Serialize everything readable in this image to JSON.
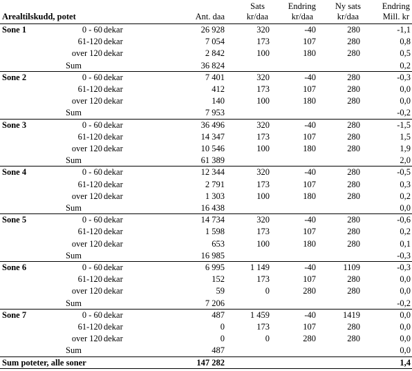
{
  "header": {
    "title": "Arealtilskudd, potet",
    "col_ant": "Ant. daa",
    "col_sats_1": "Sats",
    "col_sats_2": "kr/daa",
    "col_endring_1": "Endring",
    "col_endring_2": "kr/daa",
    "col_nysats_1": "Ny sats",
    "col_nysats_2": "kr/daa",
    "col_endmill_1": "Endring",
    "col_endmill_2": "Mill. kr"
  },
  "unit": "dekar",
  "sum_label": "Sum",
  "zones": [
    {
      "name": "Sone 1",
      "rows": [
        {
          "range": "0 -  60",
          "ant": "26 928",
          "sats": "320",
          "endring": "-40",
          "nysats": "280",
          "mill": "-1,1"
        },
        {
          "range": "61-120",
          "ant": "7 054",
          "sats": "173",
          "endring": "107",
          "nysats": "280",
          "mill": "0,8"
        },
        {
          "range": "over 120",
          "ant": "2 842",
          "sats": "100",
          "endring": "180",
          "nysats": "280",
          "mill": "0,5"
        }
      ],
      "sum_ant": "36 824",
      "sum_mill": "0,2"
    },
    {
      "name": "Sone 2",
      "rows": [
        {
          "range": "0 -  60",
          "ant": "7 401",
          "sats": "320",
          "endring": "-40",
          "nysats": "280",
          "mill": "-0,3"
        },
        {
          "range": "61-120",
          "ant": "412",
          "sats": "173",
          "endring": "107",
          "nysats": "280",
          "mill": "0,0"
        },
        {
          "range": "over 120",
          "ant": "140",
          "sats": "100",
          "endring": "180",
          "nysats": "280",
          "mill": "0,0"
        }
      ],
      "sum_ant": "7 953",
      "sum_mill": "-0,2"
    },
    {
      "name": "Sone 3",
      "rows": [
        {
          "range": "0 -  60",
          "ant": "36 496",
          "sats": "320",
          "endring": "-40",
          "nysats": "280",
          "mill": "-1,5"
        },
        {
          "range": "61-120",
          "ant": "14 347",
          "sats": "173",
          "endring": "107",
          "nysats": "280",
          "mill": "1,5"
        },
        {
          "range": "over 120",
          "ant": "10 546",
          "sats": "100",
          "endring": "180",
          "nysats": "280",
          "mill": "1,9"
        }
      ],
      "sum_ant": "61 389",
      "sum_mill": "2,0"
    },
    {
      "name": "Sone 4",
      "rows": [
        {
          "range": "0 -  60",
          "ant": "12 344",
          "sats": "320",
          "endring": "-40",
          "nysats": "280",
          "mill": "-0,5"
        },
        {
          "range": "61-120",
          "ant": "2 791",
          "sats": "173",
          "endring": "107",
          "nysats": "280",
          "mill": "0,3"
        },
        {
          "range": "over 120",
          "ant": "1 303",
          "sats": "100",
          "endring": "180",
          "nysats": "280",
          "mill": "0,2"
        }
      ],
      "sum_ant": "16 438",
      "sum_mill": "0,0"
    },
    {
      "name": "Sone 5",
      "rows": [
        {
          "range": "0 -  60",
          "ant": "14 734",
          "sats": "320",
          "endring": "-40",
          "nysats": "280",
          "mill": "-0,6"
        },
        {
          "range": "61-120",
          "ant": "1 598",
          "sats": "173",
          "endring": "107",
          "nysats": "280",
          "mill": "0,2"
        },
        {
          "range": "over 120",
          "ant": "653",
          "sats": "100",
          "endring": "180",
          "nysats": "280",
          "mill": "0,1"
        }
      ],
      "sum_ant": "16 985",
      "sum_mill": "-0,3"
    },
    {
      "name": "Sone 6",
      "rows": [
        {
          "range": "0 -  60",
          "ant": "6 995",
          "sats": "1 149",
          "endring": "-40",
          "nysats": "1109",
          "mill": "-0,3"
        },
        {
          "range": "61-120",
          "ant": "152",
          "sats": "173",
          "endring": "107",
          "nysats": "280",
          "mill": "0,0"
        },
        {
          "range": "over 120",
          "ant": "59",
          "sats": "0",
          "endring": "280",
          "nysats": "280",
          "mill": "0,0"
        }
      ],
      "sum_ant": "7 206",
      "sum_mill": "-0,2"
    },
    {
      "name": "Sone 7",
      "rows": [
        {
          "range": "0 -  60",
          "ant": "487",
          "sats": "1 459",
          "endring": "-40",
          "nysats": "1419",
          "mill": "0,0"
        },
        {
          "range": "61-120",
          "ant": "0",
          "sats": "173",
          "endring": "107",
          "nysats": "280",
          "mill": "0,0"
        },
        {
          "range": "over 120",
          "ant": "0",
          "sats": "0",
          "endring": "280",
          "nysats": "280",
          "mill": "0,0"
        }
      ],
      "sum_ant": "487",
      "sum_mill": "0,0"
    }
  ],
  "total": {
    "label": "Sum poteter, alle soner",
    "ant": "147 282",
    "mill": "1,4"
  }
}
